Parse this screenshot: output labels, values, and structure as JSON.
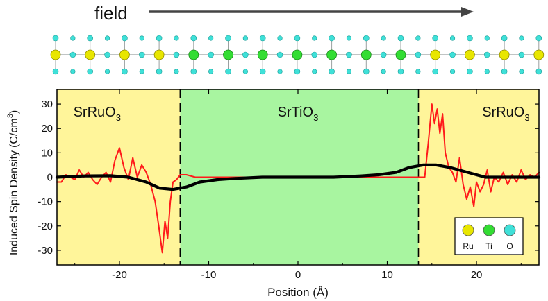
{
  "header": {
    "field_label": "field"
  },
  "colors": {
    "ru": "#e8e600",
    "ti": "#33dd33",
    "o": "#3fe0d8",
    "metal_bg": "#fff59a",
    "insulator_bg": "#a8f5a0",
    "raw_line": "#ff1a1a",
    "smooth_line": "#000000",
    "bond": "#9aa0a0"
  },
  "legend": {
    "items": [
      {
        "label": "Ru",
        "atom": "ru"
      },
      {
        "label": "Ti",
        "atom": "ti"
      },
      {
        "label": "O",
        "atom": "o"
      }
    ]
  },
  "atom_chain": [
    "ru",
    "ru",
    "ru",
    "ru",
    "ti",
    "ti",
    "ti",
    "ti",
    "ti",
    "ti",
    "ti",
    "ru",
    "ru",
    "ru",
    "ru"
  ],
  "chart_data": {
    "type": "line",
    "title": "",
    "xlabel": "Position (Å)",
    "ylabel": "Induced Spin Density",
    "ylabel_units": "(C/cm",
    "ylabel_exp": "3",
    "ylabel_close": ")",
    "xlim": [
      -27,
      27
    ],
    "ylim": [
      -36,
      36
    ],
    "xticks": [
      -20,
      -10,
      0,
      10,
      20
    ],
    "yticks": [
      -30,
      -20,
      -10,
      0,
      10,
      20,
      30
    ],
    "interfaces": [
      -13.2,
      13.5
    ],
    "regions": [
      {
        "name": "SrRuO",
        "sub": "3",
        "x": -22.5,
        "kind": "metal"
      },
      {
        "name": "SrTiO",
        "sub": "3",
        "x": 0,
        "kind": "insulator"
      },
      {
        "name": "SrRuO",
        "sub": "3",
        "x": 23.3,
        "kind": "metal"
      }
    ],
    "series": [
      {
        "name": "raw",
        "x": [
          -27,
          -26.5,
          -26,
          -25.5,
          -25,
          -24.5,
          -24,
          -23.5,
          -23,
          -22.5,
          -22,
          -21.5,
          -21,
          -20.5,
          -20,
          -19.5,
          -19,
          -18.5,
          -18,
          -17.5,
          -17,
          -16.5,
          -16,
          -15.6,
          -15.2,
          -14.9,
          -14.6,
          -14.3,
          -14,
          -13.6,
          -13.2,
          -12.5,
          -11.5,
          -10.5,
          -9.5,
          -8.5,
          -7,
          -5,
          -3,
          0,
          3,
          5,
          7,
          9,
          11,
          12.5,
          13.5,
          14.2,
          14.6,
          15,
          15.3,
          15.6,
          15.9,
          16.2,
          16.5,
          16.9,
          17.3,
          17.7,
          18.1,
          18.5,
          18.9,
          19.3,
          19.7,
          20,
          20.4,
          20.8,
          21.2,
          21.6,
          22,
          22.5,
          23,
          23.5,
          24,
          24.5,
          25,
          25.5,
          26,
          26.5,
          27
        ],
        "values": [
          -2,
          -2,
          1,
          0,
          -1,
          3,
          0,
          2,
          -1,
          -3,
          0,
          2,
          -2,
          7,
          12,
          4,
          -1,
          8,
          0,
          5,
          2,
          -3,
          -10,
          -20,
          -31,
          -18,
          -25,
          -10,
          -2,
          -1,
          1,
          1,
          0,
          0,
          0,
          0,
          0,
          0,
          0,
          0,
          0,
          0,
          0,
          0,
          0,
          0,
          0,
          0,
          14,
          30,
          22,
          28,
          18,
          26,
          10,
          4,
          2,
          -2,
          8,
          -3,
          -9,
          -4,
          -12,
          -2,
          -6,
          -3,
          3,
          -6,
          0,
          -2,
          2,
          -3,
          1,
          -2,
          3,
          -1,
          1,
          0,
          2
        ]
      },
      {
        "name": "smooth",
        "x": [
          -27,
          -24,
          -21,
          -19,
          -17,
          -15.5,
          -14,
          -12.5,
          -11,
          -9,
          -7,
          -4,
          0,
          4,
          7,
          9,
          11,
          12.5,
          14,
          15.5,
          17,
          19,
          21,
          24,
          27
        ],
        "values": [
          0,
          0.5,
          0.6,
          0,
          -2,
          -4.5,
          -5,
          -4,
          -2,
          -1,
          -0.5,
          0,
          0,
          0,
          0.5,
          1,
          2,
          4,
          5,
          5,
          4,
          2,
          0,
          0,
          0
        ]
      }
    ]
  }
}
